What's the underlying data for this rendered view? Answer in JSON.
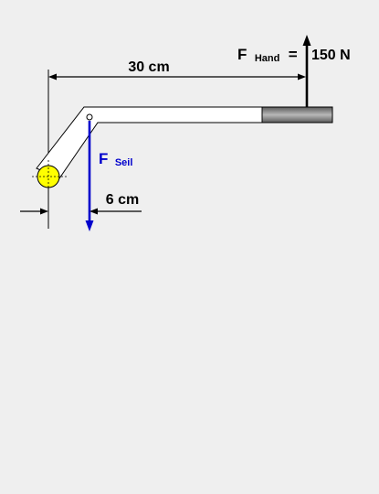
{
  "labels": {
    "dim_30": "30 cm",
    "dim_6": "6 cm",
    "f_hand_symbol": "F",
    "f_hand_sub": "Hand",
    "f_hand_eq": "=",
    "f_hand_value": "150 N",
    "f_seil_symbol": "F",
    "f_seil_sub": "Seil"
  },
  "colors": {
    "background": "#efefef",
    "lever_fill": "#ffffff",
    "outline": "#000000",
    "handle": "#8f8f8f",
    "pivot": "#ffff00",
    "rope_force": "#0000cc",
    "hand_force": "#000000"
  }
}
